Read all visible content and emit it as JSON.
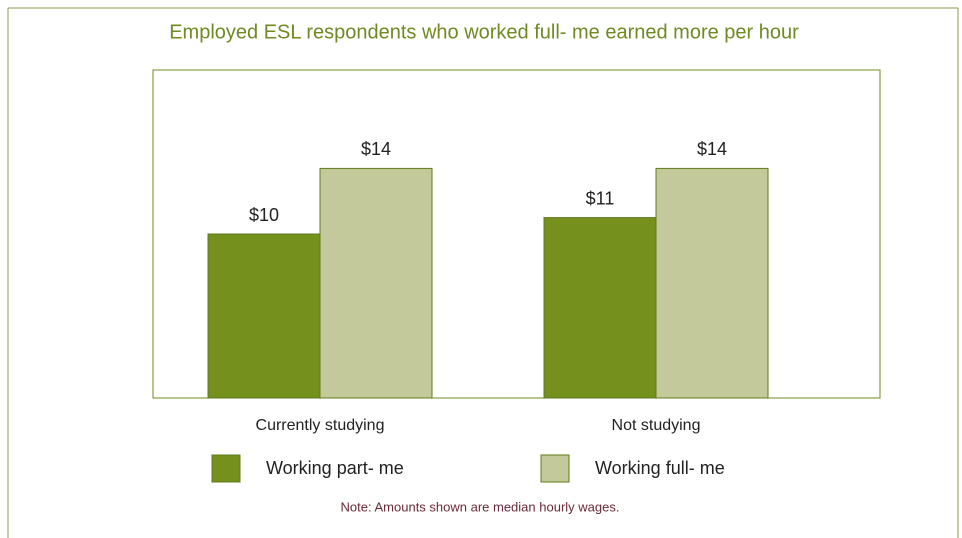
{
  "chart_data": {
    "type": "bar",
    "title": "Employed ESL respondents who worked full-  me earned more per hour",
    "categories": [
      "Currently studying",
      "Not studying"
    ],
    "series": [
      {
        "name": "Working part-  me",
        "color": "#76901e",
        "values": [
          10,
          11
        ],
        "value_labels": [
          "$10",
          "$11"
        ]
      },
      {
        "name": "Working full-  me",
        "color": "#c3c99a",
        "values": [
          14,
          14
        ],
        "value_labels": [
          "$14",
          "$14"
        ]
      }
    ],
    "ylim": [
      0,
      20
    ],
    "note": "Note: Amounts shown are median hourly wages."
  }
}
